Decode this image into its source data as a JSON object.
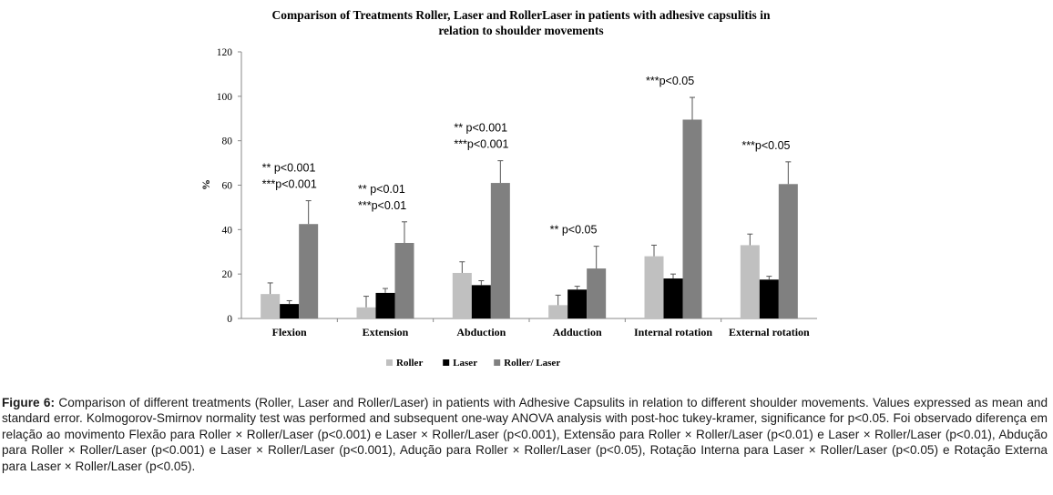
{
  "chart_data": {
    "type": "bar",
    "title_line1": "Comparison of Treatments Roller, Laser and RollerLaser in patients with adhesive capsulitis in",
    "title_line2": "relation to shoulder movements",
    "xlabel": "",
    "ylabel": "%",
    "ylim": [
      0,
      120
    ],
    "yticks": [
      0,
      20,
      40,
      60,
      80,
      100,
      120
    ],
    "grid": false,
    "legend_position": "bottom",
    "categories": [
      "Flexion",
      "Extension",
      "Abduction",
      "Adduction",
      "Internal rotation",
      "External rotation"
    ],
    "series": [
      {
        "name": "Roller",
        "color": "#c0c0c0",
        "values": [
          11,
          5,
          20.5,
          6,
          28,
          33
        ],
        "errors": [
          5,
          5,
          5,
          4.5,
          5,
          5
        ]
      },
      {
        "name": "Laser",
        "color": "#000000",
        "values": [
          6.5,
          11.5,
          15,
          13,
          18,
          17.5
        ],
        "errors": [
          1.5,
          2,
          2,
          1.5,
          2,
          1.5
        ]
      },
      {
        "name": "Roller/ Laser",
        "color": "#808080",
        "values": [
          42.5,
          34,
          61,
          22.5,
          89.5,
          60.5
        ],
        "errors": [
          10.5,
          9.5,
          10,
          10,
          10,
          10
        ]
      }
    ],
    "annotations": [
      {
        "category": "Flexion",
        "lines": [
          "** p<0.001",
          "***p<0.001"
        ]
      },
      {
        "category": "Extension",
        "lines": [
          "** p<0.01",
          "***p<0.01"
        ]
      },
      {
        "category": "Abduction",
        "lines": [
          "** p<0.001",
          "***p<0.001"
        ]
      },
      {
        "category": "Adduction",
        "lines": [
          "** p<0.05"
        ]
      },
      {
        "category": "Internal rotation",
        "lines": [
          "***p<0.05"
        ]
      },
      {
        "category": "External rotation",
        "lines": [
          "***p<0.05"
        ]
      }
    ]
  },
  "caption": {
    "label": "Figure 6:",
    "text": " Comparison of different treatments (Roller, Laser and Roller/Laser) in patients with Adhesive Capsulits in relation to different shoulder movements. Values expressed as mean and standard error. Kolmogorov-Smirnov normality test was performed and subsequent one-way ANOVA analysis with post-hoc tukey-kramer, significance for p<0.05. Foi observado diferença em relação ao movimento Flexão para Roller × Roller/Laser (p<0.001) e Laser × Roller/Laser (p<0.001), Extensão para Roller × Roller/Laser (p<0.01) e Laser × Roller/Laser (p<0.01), Abdução para Roller × Roller/Laser (p<0.001) e Laser × Roller/Laser (p<0.001), Adução para Roller × Roller/Laser (p<0.05), Rotação Interna para Laser × Roller/Laser (p<0.05) e Rotação Externa para Laser × Roller/Laser (p<0.05)."
  }
}
